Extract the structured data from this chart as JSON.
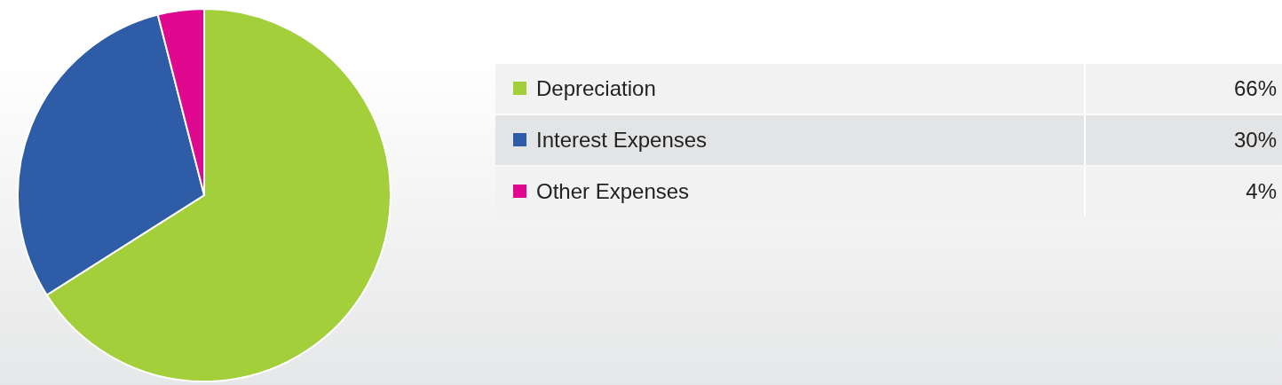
{
  "chart_data": {
    "type": "pie",
    "categories": [
      "Depreciation",
      "Interest Expenses",
      "Other Expenses"
    ],
    "values": [
      66,
      30,
      4
    ],
    "colors": [
      "#a3cf3a",
      "#2e5ca6",
      "#e0088f"
    ],
    "value_labels": [
      "66%",
      "30%",
      "4%"
    ],
    "legend": "right"
  }
}
